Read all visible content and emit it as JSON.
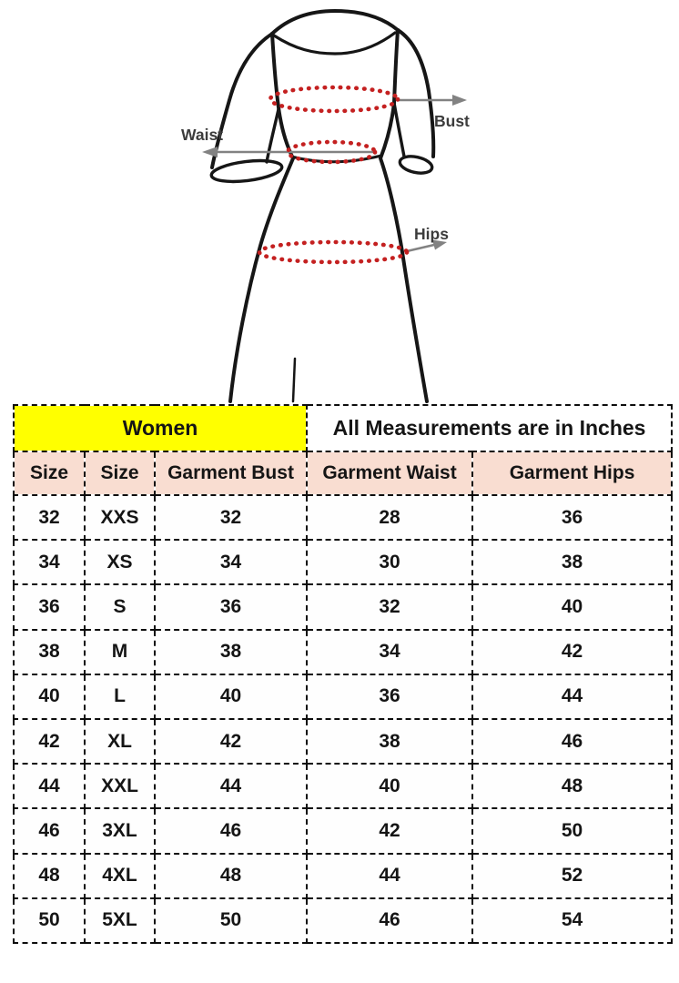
{
  "page": {
    "background": "#ffffff"
  },
  "diagram": {
    "labels": {
      "bust": "Bust",
      "waist": "Waist",
      "hips": "Hips"
    },
    "colors": {
      "outline": "#161616",
      "measure_red": "#c42020",
      "arrow_gray": "#828282",
      "label_text": "#3c3c3c"
    }
  },
  "table": {
    "group_headers": [
      {
        "label": "Women",
        "bg": "#ffff00"
      },
      {
        "label": "All Measurements are in Inches",
        "bg": "#ffffff"
      }
    ],
    "column_header_bg": "#f9ddd1",
    "columns": [
      "Size",
      "Size",
      "Garment Bust",
      "Garment Waist",
      "Garment Hips"
    ],
    "rows": [
      [
        "32",
        "XXS",
        "32",
        "28",
        "36"
      ],
      [
        "34",
        "XS",
        "34",
        "30",
        "38"
      ],
      [
        "36",
        "S",
        "36",
        "32",
        "40"
      ],
      [
        "38",
        "M",
        "38",
        "34",
        "42"
      ],
      [
        "40",
        "L",
        "40",
        "36",
        "44"
      ],
      [
        "42",
        "XL",
        "42",
        "38",
        "46"
      ],
      [
        "44",
        "XXL",
        "44",
        "40",
        "48"
      ],
      [
        "46",
        "3XL",
        "46",
        "42",
        "50"
      ],
      [
        "48",
        "4XL",
        "48",
        "44",
        "52"
      ],
      [
        "50",
        "5XL",
        "50",
        "46",
        "54"
      ]
    ]
  }
}
